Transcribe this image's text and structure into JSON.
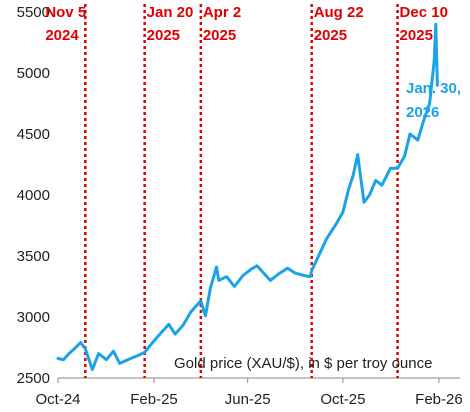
{
  "chart_data": {
    "type": "line",
    "caption": "Gold price (XAU/$), in $ per troy ounce",
    "xlim": [
      "2024-10-01",
      "2026-02-28"
    ],
    "ylim": [
      2500,
      5500
    ],
    "y_ticks": [
      2500,
      3000,
      3500,
      4000,
      4500,
      5000,
      5500
    ],
    "x_ticks": [
      {
        "date": "2024-10-01",
        "label": "Oct-24"
      },
      {
        "date": "2025-02-01",
        "label": "Feb-25"
      },
      {
        "date": "2025-06-01",
        "label": "Jun-25"
      },
      {
        "date": "2025-10-01",
        "label": "Oct-25"
      },
      {
        "date": "2026-02-01",
        "label": "Feb-26"
      }
    ],
    "grid": false,
    "colors": {
      "line": "#1aa3e8",
      "event_lines": "#e00000",
      "end_label": "#1aa3e8"
    },
    "events": [
      {
        "date": "2024-11-05",
        "line1": "Nov 5",
        "line2": "2024"
      },
      {
        "date": "2025-01-20",
        "line1": "Jan 20",
        "line2": "2025"
      },
      {
        "date": "2025-04-02",
        "line1": "Apr 2",
        "line2": "2025"
      },
      {
        "date": "2025-08-22",
        "line1": "Aug 22",
        "line2": "2025"
      },
      {
        "date": "2025-12-10",
        "line1": "Dec 10",
        "line2": "2025"
      }
    ],
    "end_label": {
      "line1": "Jan. 30,",
      "line2": "2026"
    },
    "series": [
      {
        "x": [
          "2024-10-01",
          "2024-10-08",
          "2024-10-15",
          "2024-10-22",
          "2024-10-30",
          "2024-11-05",
          "2024-11-14",
          "2024-11-22",
          "2024-12-02",
          "2024-12-11",
          "2024-12-19",
          "2025-01-02",
          "2025-01-10",
          "2025-01-20",
          "2025-01-30",
          "2025-02-10",
          "2025-02-20",
          "2025-02-28",
          "2025-03-10",
          "2025-03-20",
          "2025-03-31",
          "2025-04-02",
          "2025-04-08",
          "2025-04-14",
          "2025-04-22",
          "2025-04-25",
          "2025-05-05",
          "2025-05-15",
          "2025-05-26",
          "2025-06-05",
          "2025-06-13",
          "2025-06-30",
          "2025-07-10",
          "2025-07-22",
          "2025-08-01",
          "2025-08-12",
          "2025-08-20",
          "2025-08-22",
          "2025-09-02",
          "2025-09-10",
          "2025-09-23",
          "2025-10-01",
          "2025-10-08",
          "2025-10-14",
          "2025-10-20",
          "2025-10-28",
          "2025-11-04",
          "2025-11-12",
          "2025-11-20",
          "2025-12-01",
          "2025-12-10",
          "2025-12-19",
          "2025-12-26",
          "2026-01-05",
          "2026-01-12",
          "2026-01-20",
          "2026-01-26",
          "2026-01-28",
          "2026-01-30"
        ],
        "y": [
          2660,
          2650,
          2700,
          2740,
          2790,
          2740,
          2570,
          2700,
          2650,
          2720,
          2620,
          2660,
          2680,
          2710,
          2790,
          2870,
          2940,
          2860,
          2930,
          3040,
          3120,
          3130,
          3010,
          3230,
          3410,
          3300,
          3330,
          3250,
          3340,
          3390,
          3420,
          3300,
          3350,
          3400,
          3360,
          3340,
          3330,
          3380,
          3530,
          3640,
          3770,
          3860,
          4040,
          4160,
          4330,
          3940,
          4000,
          4120,
          4080,
          4220,
          4220,
          4320,
          4500,
          4450,
          4600,
          4750,
          5100,
          5400,
          4900
        ]
      }
    ]
  }
}
